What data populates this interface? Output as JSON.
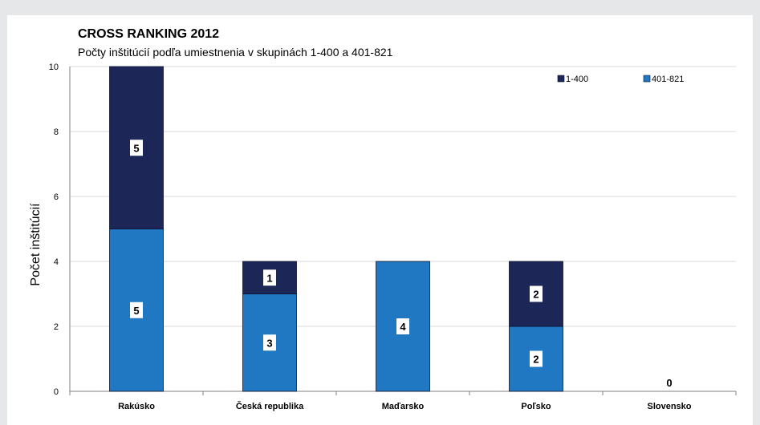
{
  "chart_data": {
    "type": "bar",
    "stacked": true,
    "title": "CROSS RANKING 2012",
    "subtitle": "Počty inštitúcií podľa umiestnenia v skupinách 1-400 a 401-821",
    "ylabel": "Počet inštitúcií",
    "xlabel": "",
    "ylim": [
      0,
      10
    ],
    "yticks": [
      "0",
      "2",
      "4",
      "6",
      "8",
      "10"
    ],
    "grid": true,
    "legend_position": "top-right",
    "categories": [
      "Rakúsko",
      "Česká republika",
      "Maďarsko",
      "Poľsko",
      "Slovensko"
    ],
    "series": [
      {
        "name": "401-821",
        "values": [
          5,
          3,
          4,
          2,
          0
        ],
        "color": "#1f78c1",
        "labels": [
          "5",
          "3",
          "4",
          "2",
          ""
        ]
      },
      {
        "name": "1-400",
        "values": [
          5,
          1,
          0,
          2,
          0
        ],
        "color": "#1c2757",
        "labels": [
          "5",
          "1",
          "",
          "2",
          ""
        ]
      }
    ],
    "annotations": [
      {
        "category": "Slovensko",
        "text": "0"
      }
    ]
  },
  "colors": {
    "background": "#e6e7e8",
    "panel": "#ffffff",
    "grid": "#d9d9d9",
    "axis": "#7f7f7f",
    "text": "#000000"
  }
}
